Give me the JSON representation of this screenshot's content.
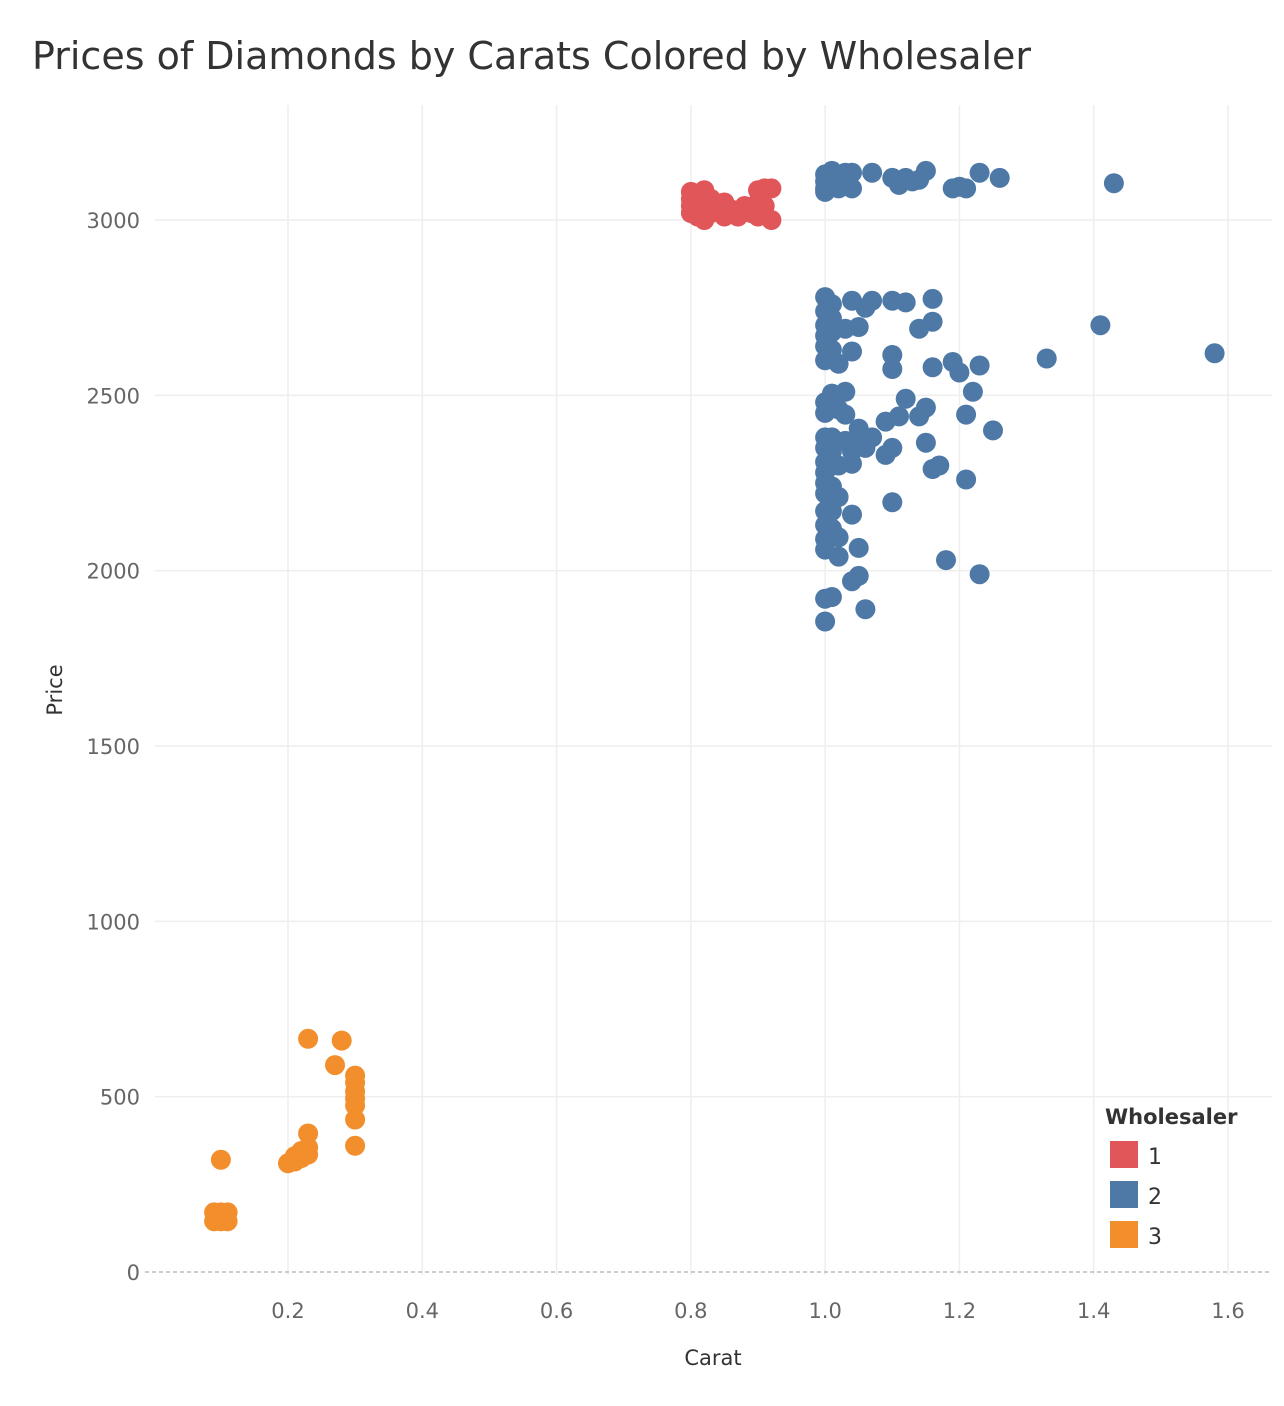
{
  "chart_data": {
    "type": "scatter",
    "title": "Prices of Diamonds by Carats Colored by Wholesaler",
    "xlabel": "Carat",
    "ylabel": "Price",
    "xlim": [
      0.0,
      1.65
    ],
    "ylim": [
      -30,
      3300
    ],
    "x_ticks": [
      0.2,
      0.4,
      0.6,
      0.8,
      1.0,
      1.2,
      1.4,
      1.6
    ],
    "x_tick_labels": [
      "0.2",
      "0.4",
      "0.6",
      "0.8",
      "1.0",
      "1.2",
      "1.4",
      "1.6"
    ],
    "y_ticks": [
      0,
      500,
      1000,
      1500,
      2000,
      2500,
      3000
    ],
    "y_tick_labels": [
      "0",
      "500",
      "1000",
      "1500",
      "2000",
      "2500",
      "3000"
    ],
    "grid": true,
    "legend": {
      "title": "Wholesaler",
      "placement": "bottom-right"
    },
    "series": [
      {
        "name": "1",
        "color": "#e15759",
        "points": [
          [
            0.8,
            3080
          ],
          [
            0.8,
            3060
          ],
          [
            0.8,
            3040
          ],
          [
            0.8,
            3020
          ],
          [
            0.81,
            3070
          ],
          [
            0.81,
            3030
          ],
          [
            0.81,
            3010
          ],
          [
            0.82,
            3085
          ],
          [
            0.82,
            3050
          ],
          [
            0.82,
            3000
          ],
          [
            0.83,
            3060
          ],
          [
            0.83,
            3020
          ],
          [
            0.84,
            3040
          ],
          [
            0.85,
            3010
          ],
          [
            0.85,
            3050
          ],
          [
            0.86,
            3030
          ],
          [
            0.87,
            3010
          ],
          [
            0.88,
            3040
          ],
          [
            0.89,
            3020
          ],
          [
            0.9,
            3085
          ],
          [
            0.9,
            3050
          ],
          [
            0.9,
            3010
          ],
          [
            0.91,
            3090
          ],
          [
            0.91,
            3040
          ],
          [
            0.91,
            3015
          ],
          [
            0.92,
            3090
          ],
          [
            0.92,
            3000
          ]
        ]
      },
      {
        "name": "2",
        "color": "#4e79a7",
        "points": [
          [
            1.0,
            3130
          ],
          [
            1.0,
            3110
          ],
          [
            1.0,
            3090
          ],
          [
            1.0,
            3080
          ],
          [
            1.01,
            3140
          ],
          [
            1.01,
            3120
          ],
          [
            1.01,
            3100
          ],
          [
            1.02,
            3130
          ],
          [
            1.02,
            3090
          ],
          [
            1.03,
            3135
          ],
          [
            1.03,
            3110
          ],
          [
            1.04,
            3135
          ],
          [
            1.04,
            3090
          ],
          [
            1.07,
            3135
          ],
          [
            1.1,
            3120
          ],
          [
            1.11,
            3100
          ],
          [
            1.12,
            3120
          ],
          [
            1.13,
            3110
          ],
          [
            1.14,
            3115
          ],
          [
            1.15,
            3140
          ],
          [
            1.19,
            3090
          ],
          [
            1.2,
            3095
          ],
          [
            1.21,
            3090
          ],
          [
            1.23,
            3135
          ],
          [
            1.26,
            3120
          ],
          [
            1.43,
            3105
          ],
          [
            1.0,
            2780
          ],
          [
            1.0,
            2740
          ],
          [
            1.0,
            2700
          ],
          [
            1.0,
            2670
          ],
          [
            1.0,
            2640
          ],
          [
            1.0,
            2600
          ],
          [
            1.01,
            2760
          ],
          [
            1.01,
            2720
          ],
          [
            1.01,
            2680
          ],
          [
            1.01,
            2630
          ],
          [
            1.02,
            2590
          ],
          [
            1.03,
            2690
          ],
          [
            1.04,
            2770
          ],
          [
            1.04,
            2625
          ],
          [
            1.05,
            2695
          ],
          [
            1.06,
            2750
          ],
          [
            1.07,
            2770
          ],
          [
            1.1,
            2770
          ],
          [
            1.12,
            2765
          ],
          [
            1.14,
            2690
          ],
          [
            1.16,
            2775
          ],
          [
            1.16,
            2710
          ],
          [
            1.1,
            2615
          ],
          [
            1.1,
            2575
          ],
          [
            1.16,
            2580
          ],
          [
            1.19,
            2595
          ],
          [
            1.2,
            2565
          ],
          [
            1.23,
            2585
          ],
          [
            1.22,
            2510
          ],
          [
            1.33,
            2605
          ],
          [
            1.41,
            2700
          ],
          [
            1.58,
            2620
          ],
          [
            1.0,
            2480
          ],
          [
            1.0,
            2450
          ],
          [
            1.01,
            2505
          ],
          [
            1.02,
            2460
          ],
          [
            1.03,
            2510
          ],
          [
            1.03,
            2445
          ],
          [
            1.05,
            2405
          ],
          [
            1.09,
            2425
          ],
          [
            1.11,
            2440
          ],
          [
            1.12,
            2490
          ],
          [
            1.14,
            2440
          ],
          [
            1.15,
            2465
          ],
          [
            1.21,
            2445
          ],
          [
            1.25,
            2400
          ],
          [
            1.0,
            2380
          ],
          [
            1.0,
            2350
          ],
          [
            1.0,
            2310
          ],
          [
            1.0,
            2280
          ],
          [
            1.01,
            2380
          ],
          [
            1.01,
            2340
          ],
          [
            1.02,
            2300
          ],
          [
            1.03,
            2370
          ],
          [
            1.04,
            2340
          ],
          [
            1.04,
            2305
          ],
          [
            1.05,
            2380
          ],
          [
            1.06,
            2350
          ],
          [
            1.07,
            2380
          ],
          [
            1.09,
            2330
          ],
          [
            1.1,
            2350
          ],
          [
            1.15,
            2365
          ],
          [
            1.16,
            2290
          ],
          [
            1.17,
            2300
          ],
          [
            1.21,
            2260
          ],
          [
            1.0,
            2250
          ],
          [
            1.0,
            2220
          ],
          [
            1.0,
            2170
          ],
          [
            1.0,
            2130
          ],
          [
            1.0,
            2090
          ],
          [
            1.0,
            2060
          ],
          [
            1.01,
            2240
          ],
          [
            1.01,
            2170
          ],
          [
            1.01,
            2120
          ],
          [
            1.02,
            2210
          ],
          [
            1.02,
            2095
          ],
          [
            1.02,
            2040
          ],
          [
            1.04,
            2160
          ],
          [
            1.05,
            2065
          ],
          [
            1.1,
            2195
          ],
          [
            1.18,
            2030
          ],
          [
            1.23,
            1990
          ],
          [
            1.0,
            1920
          ],
          [
            1.01,
            1925
          ],
          [
            1.04,
            1970
          ],
          [
            1.05,
            1985
          ],
          [
            1.06,
            1890
          ],
          [
            1.0,
            1855
          ]
        ]
      },
      {
        "name": "3",
        "color": "#f28e2b",
        "points": [
          [
            0.09,
            170
          ],
          [
            0.09,
            145
          ],
          [
            0.1,
            170
          ],
          [
            0.1,
            145
          ],
          [
            0.1,
            320
          ],
          [
            0.11,
            170
          ],
          [
            0.11,
            145
          ],
          [
            0.2,
            310
          ],
          [
            0.21,
            315
          ],
          [
            0.21,
            330
          ],
          [
            0.22,
            325
          ],
          [
            0.22,
            345
          ],
          [
            0.23,
            335
          ],
          [
            0.23,
            355
          ],
          [
            0.23,
            395
          ],
          [
            0.23,
            665
          ],
          [
            0.27,
            590
          ],
          [
            0.28,
            660
          ],
          [
            0.3,
            560
          ],
          [
            0.3,
            540
          ],
          [
            0.3,
            515
          ],
          [
            0.3,
            495
          ],
          [
            0.3,
            475
          ],
          [
            0.3,
            435
          ],
          [
            0.3,
            360
          ]
        ]
      }
    ]
  }
}
